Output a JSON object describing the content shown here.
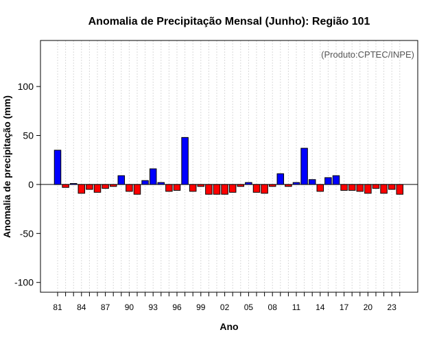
{
  "chart_data": {
    "type": "bar",
    "title": "Anomalia de Precipitação Mensal (Junho): Região 101",
    "xlabel": "Ano",
    "ylabel": "Anomalia de precipitação (mm)",
    "credit": "(Produto:CPTEC/INPE)",
    "ylim": [
      -110,
      147
    ],
    "y_ticks": [
      -100,
      -50,
      0,
      50,
      100
    ],
    "grid": "vertical dotted",
    "positive_color": "#0000ff",
    "negative_color": "#ff0000",
    "years": [
      1981,
      1982,
      1983,
      1984,
      1985,
      1986,
      1987,
      1988,
      1989,
      1990,
      1991,
      1992,
      1993,
      1994,
      1995,
      1996,
      1997,
      1998,
      1999,
      2000,
      2001,
      2002,
      2003,
      2004,
      2005,
      2006,
      2007,
      2008,
      2009,
      2010,
      2011,
      2012,
      2013,
      2014,
      2015,
      2016,
      2017,
      2018,
      2019,
      2020,
      2021,
      2022,
      2023,
      2024
    ],
    "values": [
      35,
      -3,
      1,
      -9,
      -5,
      -8,
      -4,
      -2,
      9,
      -7,
      -10,
      4,
      16,
      2,
      -7,
      -6,
      48,
      -7,
      -2,
      -10,
      -10,
      -10,
      -8,
      -2,
      2,
      -8,
      -9,
      -2,
      11,
      -2,
      2,
      37,
      5,
      -7,
      7,
      9,
      -6,
      -6,
      -7,
      -9,
      -4,
      -9,
      -5,
      -10
    ],
    "x_tick_labels": [
      "81",
      "84",
      "87",
      "90",
      "93",
      "96",
      "99",
      "02",
      "05",
      "08",
      "11",
      "14",
      "17",
      "20",
      "23"
    ]
  }
}
